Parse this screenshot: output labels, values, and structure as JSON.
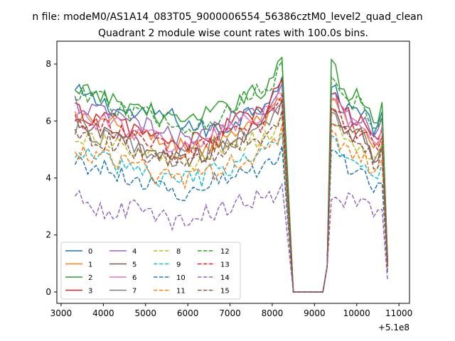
{
  "chart_data": {
    "type": "line",
    "suptitle": "n file: modeM0/AS1A14_083T05_9000006554_56386cztM0_level2_quad_clean",
    "title": "Quadrant 2 module wise count rates with 100.0s bins.",
    "xlabel": "",
    "ylabel": "",
    "x_offset_label": "+5.1e8",
    "xlim": [
      2900,
      11250
    ],
    "ylim": [
      -0.4,
      8.8
    ],
    "xticks": [
      3000,
      4000,
      5000,
      6000,
      7000,
      8000,
      9000,
      10000,
      11000
    ],
    "xtick_labels": [
      "3000",
      "4000",
      "5000",
      "6000",
      "7000",
      "8000",
      "9000",
      "10000",
      "11000"
    ],
    "yticks": [
      0,
      2,
      4,
      6,
      8
    ],
    "ytick_labels": [
      "0",
      "2",
      "4",
      "6",
      "8"
    ],
    "grid": false,
    "legend_position": "lower-left",
    "series": [
      {
        "name": "0",
        "color": "#1f77b4",
        "dash": "solid",
        "seg1": [
          7.0,
          6.7,
          6.4,
          6.2,
          6.3,
          6.0,
          5.7,
          5.7,
          6.2,
          6.7,
          7.6
        ],
        "seg2": [
          7.2,
          6.8,
          6.5,
          6.3,
          6.5,
          6.3,
          5.6,
          6.2,
          1.2
        ]
      },
      {
        "name": "1",
        "color": "#ff7f0e",
        "dash": "solid",
        "seg1": [
          6.2,
          5.9,
          5.8,
          5.5,
          5.3,
          5.2,
          5.0,
          5.4,
          5.8,
          6.0,
          6.7
        ],
        "seg2": [
          6.8,
          6.2,
          6.0,
          5.5,
          5.6,
          5.4,
          4.8,
          5.4,
          1.0
        ]
      },
      {
        "name": "2",
        "color": "#2ca02c",
        "dash": "solid",
        "seg1": [
          6.9,
          7.0,
          6.6,
          6.5,
          6.2,
          6.0,
          6.1,
          6.4,
          6.9,
          7.1,
          8.3
        ],
        "seg2": [
          8.2,
          7.4,
          6.9,
          6.8,
          6.9,
          6.6,
          5.9,
          6.5,
          1.1
        ]
      },
      {
        "name": "3",
        "color": "#d62728",
        "dash": "solid",
        "seg1": [
          6.4,
          6.1,
          6.0,
          5.7,
          5.4,
          5.2,
          5.3,
          5.8,
          6.1,
          6.4,
          7.5
        ],
        "seg2": [
          7.0,
          6.6,
          6.3,
          6.0,
          6.1,
          5.8,
          5.1,
          5.8,
          1.0
        ]
      },
      {
        "name": "4",
        "color": "#9467bd",
        "dash": "solid",
        "seg1": [
          6.6,
          6.3,
          6.2,
          5.9,
          5.6,
          5.4,
          5.4,
          5.9,
          6.3,
          6.5,
          7.3
        ],
        "seg2": [
          7.0,
          6.6,
          6.4,
          6.0,
          6.1,
          5.9,
          5.3,
          5.9,
          1.0
        ]
      },
      {
        "name": "5",
        "color": "#8c564b",
        "dash": "solid",
        "seg1": [
          5.9,
          5.6,
          5.4,
          5.2,
          4.9,
          4.7,
          4.8,
          5.2,
          5.5,
          5.8,
          6.8
        ],
        "seg2": [
          6.5,
          6.0,
          5.8,
          5.5,
          5.6,
          5.4,
          4.6,
          5.3,
          0.9
        ]
      },
      {
        "name": "6",
        "color": "#e377c2",
        "dash": "solid",
        "seg1": [
          6.3,
          6.0,
          5.9,
          5.6,
          5.3,
          5.1,
          5.2,
          5.6,
          6.0,
          6.2,
          6.9
        ],
        "seg2": [
          6.9,
          6.4,
          6.2,
          5.8,
          5.9,
          5.7,
          5.0,
          5.6,
          1.0
        ]
      },
      {
        "name": "7",
        "color": "#7f7f7f",
        "dash": "solid",
        "seg1": [
          5.8,
          5.5,
          5.3,
          5.1,
          4.8,
          4.7,
          4.8,
          5.2,
          5.5,
          5.7,
          6.6
        ],
        "seg2": [
          6.4,
          5.9,
          5.7,
          5.4,
          5.5,
          5.3,
          4.5,
          5.2,
          0.9
        ]
      },
      {
        "name": "8",
        "color": "#bcbd22",
        "dash": "dashed",
        "seg1": [
          5.5,
          5.3,
          5.1,
          4.9,
          4.7,
          4.5,
          4.6,
          4.9,
          5.2,
          5.4,
          6.1
        ],
        "seg2": [
          6.0,
          5.6,
          5.4,
          5.1,
          5.2,
          5.0,
          4.3,
          4.9,
          0.9
        ]
      },
      {
        "name": "9",
        "color": "#17becf",
        "dash": "dashed",
        "seg1": [
          4.9,
          4.7,
          4.5,
          4.3,
          4.0,
          3.9,
          4.0,
          4.3,
          4.6,
          4.8,
          5.5
        ],
        "seg2": [
          5.6,
          5.1,
          4.9,
          4.6,
          4.7,
          4.5,
          3.9,
          4.5,
          0.8
        ]
      },
      {
        "name": "10",
        "color": "#1f77b4",
        "dash": "dashed",
        "seg1": [
          4.6,
          4.4,
          4.2,
          3.9,
          3.7,
          3.5,
          3.7,
          3.9,
          4.2,
          4.4,
          5.0
        ],
        "seg2": [
          5.1,
          4.7,
          4.5,
          4.2,
          4.3,
          4.1,
          3.6,
          4.1,
          0.7
        ]
      },
      {
        "name": "11",
        "color": "#ff7f0e",
        "dash": "dashed",
        "seg1": [
          5.0,
          4.8,
          4.6,
          4.4,
          4.1,
          3.9,
          4.1,
          4.4,
          4.7,
          4.9,
          5.8
        ],
        "seg2": [
          5.8,
          5.3,
          5.0,
          4.8,
          4.8,
          4.6,
          3.9,
          4.6,
          0.8
        ]
      },
      {
        "name": "12",
        "color": "#2ca02c",
        "dash": "dashed",
        "seg1": [
          6.8,
          6.8,
          6.4,
          6.3,
          6.0,
          5.8,
          5.9,
          6.3,
          6.8,
          7.0,
          8.0
        ],
        "seg2": [
          7.7,
          7.1,
          6.8,
          6.6,
          6.7,
          6.4,
          5.7,
          6.4,
          1.1
        ]
      },
      {
        "name": "13",
        "color": "#d62728",
        "dash": "dashed",
        "seg1": [
          6.0,
          5.8,
          5.6,
          5.4,
          5.1,
          4.9,
          5.0,
          5.4,
          5.7,
          6.0,
          6.8
        ],
        "seg2": [
          6.6,
          6.1,
          5.9,
          5.6,
          5.7,
          5.5,
          4.8,
          5.4,
          0.9
        ]
      },
      {
        "name": "14",
        "color": "#9467bd",
        "dash": "dashed",
        "seg1": [
          3.3,
          3.0,
          2.8,
          2.9,
          2.6,
          2.4,
          2.7,
          2.9,
          3.2,
          3.3,
          3.6
        ],
        "seg2": [
          3.4,
          3.3,
          3.2,
          3.2,
          3.1,
          3.0,
          2.5,
          3.1,
          0.4
        ]
      },
      {
        "name": "15",
        "color": "#8c564b",
        "dash": "dashed",
        "seg1": [
          5.6,
          5.4,
          5.2,
          4.9,
          4.7,
          4.5,
          4.6,
          5.0,
          5.3,
          5.5,
          6.2
        ],
        "seg2": [
          6.1,
          5.7,
          5.5,
          5.2,
          5.3,
          5.0,
          4.4,
          5.0,
          0.8
        ]
      }
    ],
    "segment1_x_range": [
      3330,
      8300
    ],
    "segment2_x_range": [
      9400,
      10600
    ],
    "drop": {
      "x_start": 8300,
      "x_zero_start": 8500,
      "x_zero_end": 9200,
      "x_rise_end": 9400,
      "x_end": 10730
    }
  }
}
